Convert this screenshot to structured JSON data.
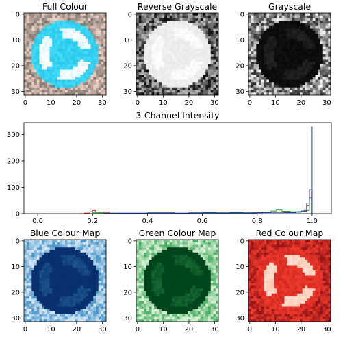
{
  "chart_data": [
    {
      "type": "image",
      "title": "Full Colour",
      "colormap": "rgb",
      "xticks": [
        "0",
        "10",
        "20",
        "30"
      ],
      "yticks": [
        "0",
        "10",
        "20",
        "30"
      ],
      "extent": [
        0,
        32
      ]
    },
    {
      "type": "image",
      "title": "Reverse Grayscale",
      "colormap": "gray_r",
      "xticks": [
        "0",
        "10",
        "20",
        "30"
      ],
      "yticks": [
        "0",
        "10",
        "20",
        "30"
      ],
      "extent": [
        0,
        32
      ]
    },
    {
      "type": "image",
      "title": "Grayscale",
      "colormap": "gray",
      "xticks": [
        "0",
        "10",
        "20",
        "30"
      ],
      "yticks": [
        "0",
        "10",
        "20",
        "30"
      ],
      "extent": [
        0,
        32
      ]
    },
    {
      "type": "histogram",
      "title": "3-Channel Intensity",
      "xlim": [
        -0.05,
        1.07
      ],
      "ylim": [
        0,
        345
      ],
      "xticks": [
        "0.0",
        "0.2",
        "0.4",
        "0.6",
        "0.8",
        "1.0"
      ],
      "xtick_values": [
        0,
        0.2,
        0.4,
        0.6,
        0.8,
        1.0
      ],
      "yticks": [
        "0",
        "100",
        "200",
        "300"
      ],
      "ytick_values": [
        0,
        100,
        200,
        300
      ],
      "series": [
        {
          "name": "red",
          "color": "#d62728",
          "points": [
            [
              0.15,
              0
            ],
            [
              0.17,
              2
            ],
            [
              0.19,
              7
            ],
            [
              0.2,
              12
            ],
            [
              0.21,
              6
            ],
            [
              0.23,
              3
            ],
            [
              0.26,
              2
            ],
            [
              0.3,
              1
            ],
            [
              0.35,
              1
            ],
            [
              0.4,
              1
            ],
            [
              0.45,
              2
            ],
            [
              0.5,
              1
            ],
            [
              0.55,
              1
            ],
            [
              0.6,
              2
            ],
            [
              0.65,
              1
            ],
            [
              0.7,
              2
            ],
            [
              0.75,
              2
            ],
            [
              0.8,
              4
            ],
            [
              0.85,
              5
            ],
            [
              0.9,
              4
            ],
            [
              0.94,
              6
            ],
            [
              0.96,
              8
            ],
            [
              0.98,
              30
            ],
            [
              0.99,
              90
            ],
            [
              1.0,
              15
            ],
            [
              1.0,
              0
            ]
          ]
        },
        {
          "name": "green",
          "color": "#2ca02c",
          "points": [
            [
              0.18,
              0
            ],
            [
              0.2,
              3
            ],
            [
              0.24,
              2
            ],
            [
              0.3,
              1
            ],
            [
              0.4,
              1
            ],
            [
              0.5,
              1
            ],
            [
              0.6,
              2
            ],
            [
              0.7,
              2
            ],
            [
              0.78,
              3
            ],
            [
              0.82,
              6
            ],
            [
              0.85,
              10
            ],
            [
              0.87,
              14
            ],
            [
              0.89,
              9
            ],
            [
              0.92,
              7
            ],
            [
              0.95,
              8
            ],
            [
              0.97,
              12
            ],
            [
              0.99,
              60
            ],
            [
              1.0,
              25
            ],
            [
              1.0,
              0
            ]
          ]
        },
        {
          "name": "blue",
          "color": "#1f3fbf",
          "points": [
            [
              0.2,
              0
            ],
            [
              0.24,
              1
            ],
            [
              0.3,
              2
            ],
            [
              0.4,
              3
            ],
            [
              0.5,
              2
            ],
            [
              0.55,
              3
            ],
            [
              0.6,
              4
            ],
            [
              0.65,
              3
            ],
            [
              0.7,
              4
            ],
            [
              0.75,
              3
            ],
            [
              0.8,
              4
            ],
            [
              0.85,
              5
            ],
            [
              0.9,
              4
            ],
            [
              0.94,
              6
            ],
            [
              0.96,
              10
            ],
            [
              0.98,
              40
            ],
            [
              0.99,
              90
            ],
            [
              1.0,
              330
            ],
            [
              1.0,
              0
            ]
          ]
        }
      ]
    },
    {
      "type": "image",
      "title": "Blue Colour Map",
      "colormap": "Blues",
      "xticks": [
        "0",
        "10",
        "20",
        "30"
      ],
      "yticks": [
        "0",
        "10",
        "20",
        "30"
      ],
      "extent": [
        0,
        32
      ]
    },
    {
      "type": "image",
      "title": "Green Colour Map",
      "colormap": "Greens",
      "xticks": [
        "0",
        "10",
        "20",
        "30"
      ],
      "yticks": [
        "0",
        "10",
        "20",
        "30"
      ],
      "extent": [
        0,
        32
      ]
    },
    {
      "type": "image",
      "title": "Red Colour Map",
      "colormap": "Reds",
      "xticks": [
        "0",
        "10",
        "20",
        "30"
      ],
      "yticks": [
        "0",
        "10",
        "20",
        "30"
      ],
      "extent": [
        0,
        32
      ]
    }
  ]
}
